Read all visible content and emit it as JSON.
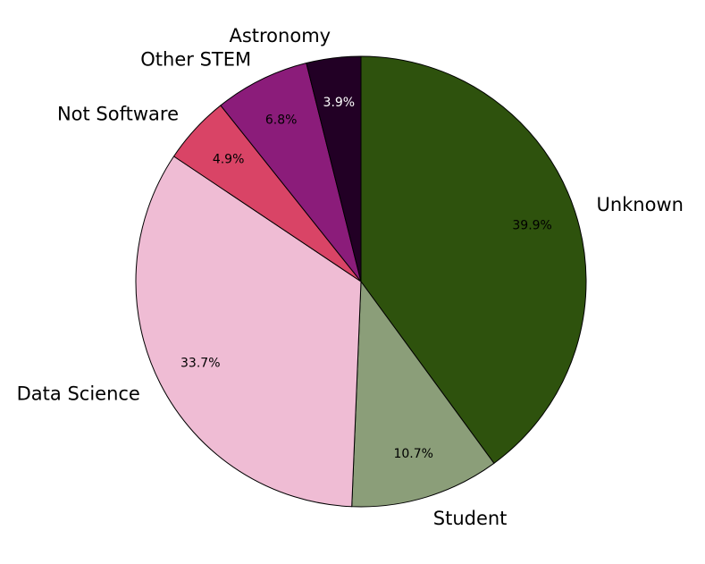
{
  "chart_data": {
    "type": "pie",
    "title": "",
    "start_angle_deg": 90,
    "direction": "clockwise",
    "autopct_format": "{v}%",
    "slices": [
      {
        "label": "Unknown",
        "value": 39.9,
        "pct_text": "39.9%",
        "color": "#2e520d",
        "pct_color": "#000000"
      },
      {
        "label": "Student",
        "value": 10.7,
        "pct_text": "10.7%",
        "color": "#8b9e79",
        "pct_color": "#000000"
      },
      {
        "label": "Data Science",
        "value": 33.7,
        "pct_text": "33.7%",
        "color": "#efbcd4",
        "pct_color": "#000000"
      },
      {
        "label": "Not Software",
        "value": 4.9,
        "pct_text": "4.9%",
        "color": "#d94466",
        "pct_color": "#000000"
      },
      {
        "label": "Other STEM",
        "value": 6.8,
        "pct_text": "6.8%",
        "color": "#8b1c7a",
        "pct_color": "#000000"
      },
      {
        "label": "Astronomy",
        "value": 3.9,
        "pct_text": "3.9%",
        "color": "#220025",
        "pct_color": "#ffffff"
      }
    ],
    "edge_color": "#000000",
    "legend": false
  }
}
